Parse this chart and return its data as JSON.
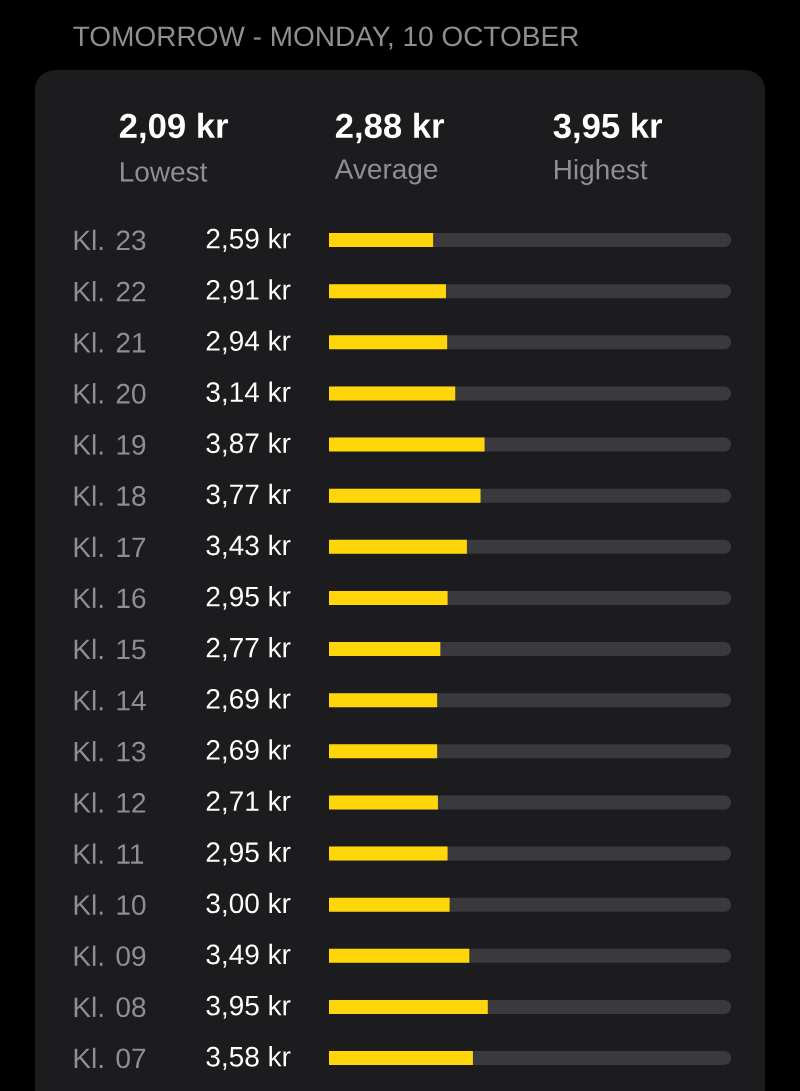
{
  "chart_data": {
    "type": "bar",
    "orientation": "horizontal",
    "title": "TOMORROW - MONDAY, 10 OCTOBER",
    "annotations": [
      "2,09 kr",
      "Lowest",
      "2,88 kr",
      "Average",
      "3,95 kr",
      "Highest"
    ],
    "categories": [
      "Kl. 23",
      "Kl. 22",
      "Kl. 21",
      "Kl. 20",
      "Kl. 19",
      "Kl. 18",
      "Kl. 17",
      "Kl. 16",
      "Kl. 15",
      "Kl. 14",
      "Kl. 13",
      "Kl. 12",
      "Kl. 11",
      "Kl. 10",
      "Kl. 09",
      "Kl. 08",
      "Kl. 07"
    ],
    "values": [
      2.59,
      2.91,
      2.94,
      3.14,
      3.87,
      3.77,
      3.43,
      2.95,
      2.77,
      2.69,
      2.69,
      2.71,
      2.95,
      3.0,
      3.49,
      3.95,
      3.58
    ],
    "value_labels": [
      "2,59 kr",
      "2,91 kr",
      "2,94 kr",
      "3,14 kr",
      "3,87 kr",
      "3,77 kr",
      "3,43 kr",
      "2,95 kr",
      "2,77 kr",
      "2,69 kr",
      "2,69 kr",
      "2,71 kr",
      "2,95 kr",
      "3,00 kr",
      "3,49 kr",
      "3,95 kr",
      "3,58 kr"
    ],
    "color": "#ffd60a",
    "xlim": [
      0,
      10
    ]
  }
}
